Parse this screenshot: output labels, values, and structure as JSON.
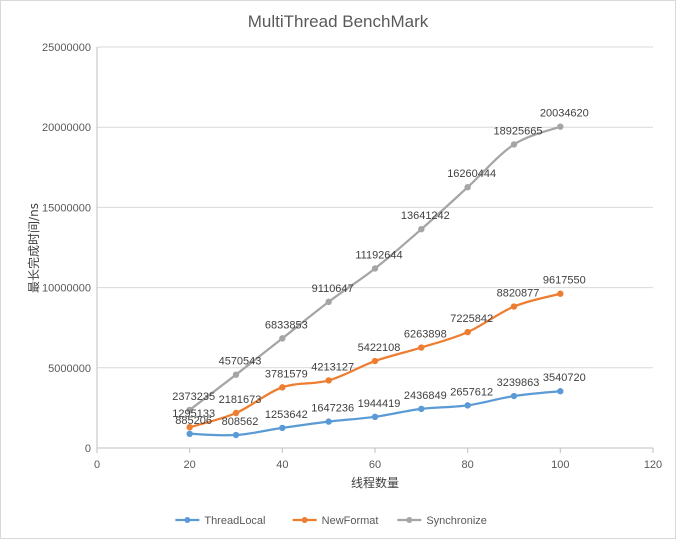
{
  "chart_data": {
    "type": "line",
    "title": "MultiThread BenchMark",
    "xlabel": "线程数量",
    "ylabel": "最长完成时间/ns",
    "xlim": [
      0,
      120
    ],
    "ylim": [
      0,
      25000000
    ],
    "x_ticks": [
      0,
      20,
      40,
      60,
      80,
      100,
      120
    ],
    "y_ticks": [
      0,
      5000000,
      10000000,
      15000000,
      20000000,
      25000000
    ],
    "x_tick_labels": [
      "0",
      "20",
      "40",
      "60",
      "80",
      "100",
      "120"
    ],
    "y_tick_labels": [
      "0",
      "5000000",
      "10000000",
      "15000000",
      "20000000",
      "25000000"
    ],
    "grid": "horizontal",
    "legend": "bottom",
    "x": [
      20,
      30,
      40,
      50,
      60,
      70,
      80,
      90,
      100
    ],
    "series": [
      {
        "name": "ThreadLocal",
        "color": "#5B9BD5",
        "values": [
          885206,
          808562,
          1253642,
          1647236,
          1944419,
          2436849,
          2657612,
          3239863,
          3540720
        ],
        "labels": [
          "885206",
          "808562",
          "1253642",
          "1647236",
          "1944419",
          "2436849",
          "2657612",
          "3239863",
          "3540720"
        ]
      },
      {
        "name": "NewFormat",
        "color": "#ED7D31",
        "values": [
          1295133,
          2181673,
          3781579,
          4213127,
          5422108,
          6263898,
          7225842,
          8820877,
          9617550
        ],
        "labels": [
          "1295133",
          "2181673",
          "3781579",
          "4213127",
          "5422108",
          "6263898",
          "7225842",
          "8820877",
          "9617550"
        ]
      },
      {
        "name": "Synchronize",
        "color": "#A5A5A5",
        "values": [
          2373235,
          4570543,
          6833853,
          9110647,
          11192644,
          13641242,
          16260444,
          18925665,
          20034620
        ],
        "labels": [
          "2373235",
          "4570543",
          "6833853",
          "9110647",
          "11192644",
          "13641242",
          "16260444",
          "18925665",
          "20034620"
        ]
      }
    ]
  }
}
